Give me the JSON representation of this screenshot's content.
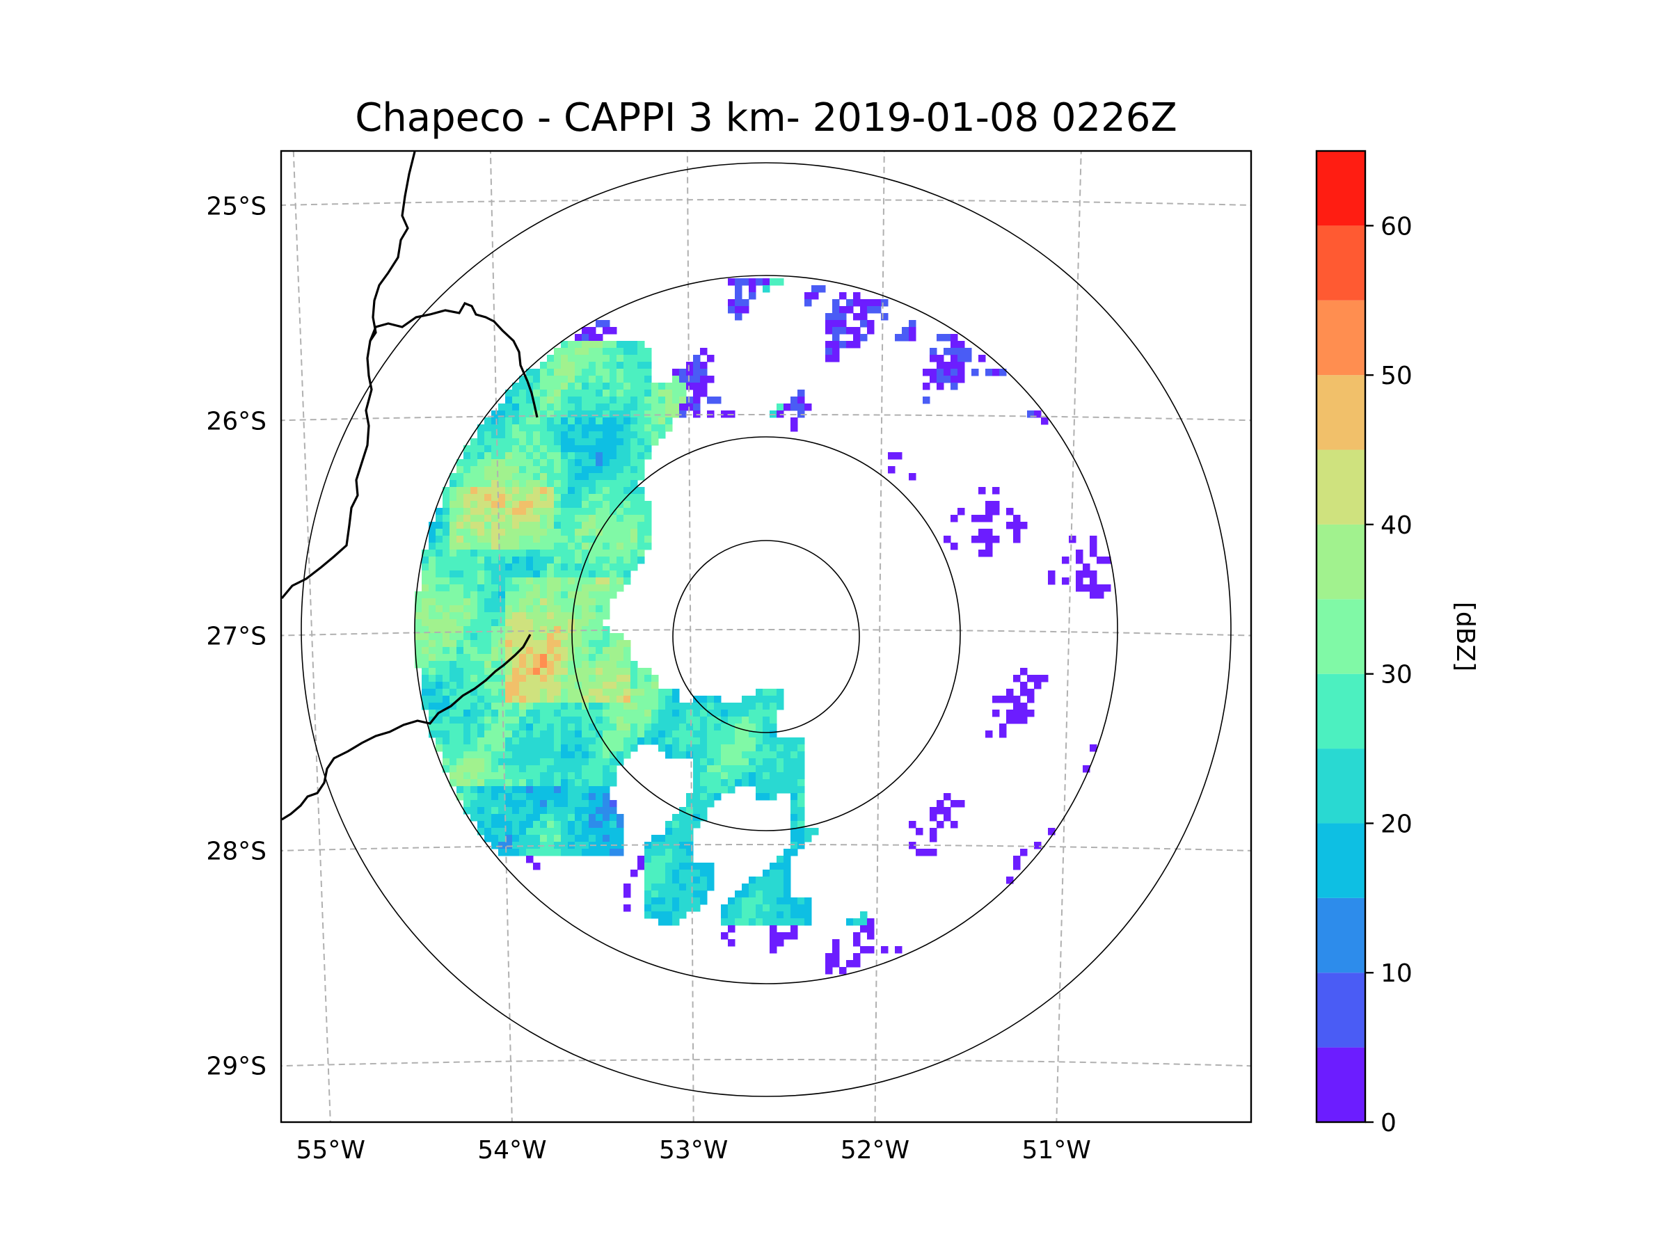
{
  "title": "Chapeco - CAPPI 3 km- 2019-01-08 0226Z",
  "map": {
    "lon_ticks": [
      {
        "value": -55,
        "label": "55°W"
      },
      {
        "value": -54,
        "label": "54°W"
      },
      {
        "value": -53,
        "label": "53°W"
      },
      {
        "value": -52,
        "label": "52°W"
      },
      {
        "value": -51,
        "label": "51°W"
      }
    ],
    "lat_ticks": [
      {
        "value": -25,
        "label": "25°S"
      },
      {
        "value": -26,
        "label": "26°S"
      },
      {
        "value": -27,
        "label": "27°S"
      },
      {
        "value": -28,
        "label": "28°S"
      },
      {
        "value": -29,
        "label": "29°S"
      }
    ],
    "radar_site": {
      "name": "Chapeco",
      "lon": -52.6,
      "lat": -27.03
    },
    "range_rings": [
      "inner",
      "middle",
      "data-extent",
      "outer"
    ]
  },
  "colorbar": {
    "label": "[dBZ]",
    "ticks": [
      {
        "value": 0,
        "label": "0"
      },
      {
        "value": 10,
        "label": "10"
      },
      {
        "value": 20,
        "label": "20"
      },
      {
        "value": 30,
        "label": "30"
      },
      {
        "value": 40,
        "label": "40"
      },
      {
        "value": 50,
        "label": "50"
      },
      {
        "value": 60,
        "label": "60"
      }
    ],
    "bins": [
      {
        "from": 0,
        "to": 5,
        "color": "#6c1dff"
      },
      {
        "from": 5,
        "to": 10,
        "color": "#4a5cf5"
      },
      {
        "from": 10,
        "to": 15,
        "color": "#2d8ceb"
      },
      {
        "from": 15,
        "to": 20,
        "color": "#0ebfe3"
      },
      {
        "from": 20,
        "to": 25,
        "color": "#29d9d2"
      },
      {
        "from": 25,
        "to": 30,
        "color": "#4cf0c0"
      },
      {
        "from": 30,
        "to": 35,
        "color": "#80f9a6"
      },
      {
        "from": 35,
        "to": 40,
        "color": "#a1f28e"
      },
      {
        "from": 40,
        "to": 45,
        "color": "#cfe27e"
      },
      {
        "from": 45,
        "to": 50,
        "color": "#f1c06a"
      },
      {
        "from": 50,
        "to": 55,
        "color": "#ff8e50"
      },
      {
        "from": 55,
        "to": 60,
        "color": "#ff5a32"
      },
      {
        "from": 60,
        "to": 65,
        "color": "#ff1d12"
      }
    ]
  }
}
